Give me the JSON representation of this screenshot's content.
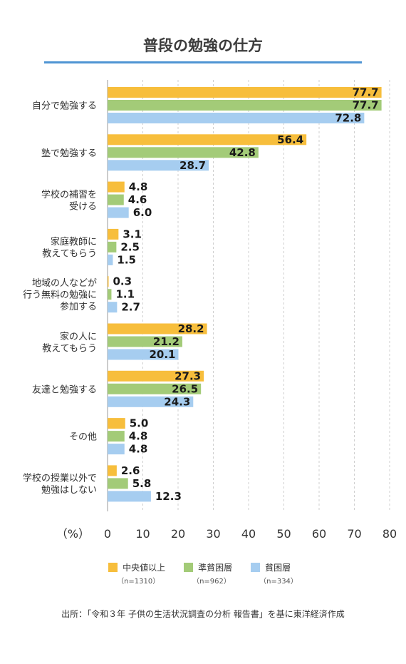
{
  "title": "普段の勉強の仕方",
  "source": "出所：「令和３年 子供の生活状況調査の分析 報告書」を基に東洋経済作成",
  "legend": [
    {
      "name": "中央値以上",
      "n": "（n=1310）",
      "color": "#f7be3c"
    },
    {
      "name": "準貧困層",
      "n": "（n=962）",
      "color": "#a3cb78"
    },
    {
      "name": "貧困層",
      "n": "（n=334）",
      "color": "#a6cdf0"
    }
  ],
  "chart_data": {
    "type": "bar",
    "orientation": "horizontal",
    "title": "普段の勉強の仕方",
    "unit_label": "（%）",
    "xlim": [
      0,
      80
    ],
    "ticks": [
      "0",
      "10",
      "20",
      "30",
      "40",
      "50",
      "60",
      "70",
      "80"
    ],
    "grid": true,
    "legend_position": "bottom",
    "categories": [
      [
        "自分で勉強する"
      ],
      [
        "塾で勉強する"
      ],
      [
        "学校の補習を",
        "受ける"
      ],
      [
        "家庭教師に",
        "教えてもらう"
      ],
      [
        "地域の人などが",
        "行う無料の勉強に",
        "参加する"
      ],
      [
        "家の人に",
        "教えてもらう"
      ],
      [
        "友達と勉強する"
      ],
      [
        "その他"
      ],
      [
        "学校の授業以外で",
        "勉強はしない"
      ]
    ],
    "series": [
      {
        "name": "中央値以上",
        "color": "#f7be3c",
        "values": [
          77.7,
          56.4,
          4.8,
          3.1,
          0.3,
          28.2,
          27.3,
          5.0,
          2.6
        ]
      },
      {
        "name": "準貧困層",
        "color": "#a3cb78",
        "values": [
          77.7,
          42.8,
          4.6,
          2.5,
          1.1,
          21.2,
          26.5,
          4.8,
          5.8
        ]
      },
      {
        "name": "貧困層",
        "color": "#a6cdf0",
        "values": [
          72.8,
          28.7,
          6.0,
          1.5,
          2.7,
          20.1,
          24.3,
          4.8,
          12.3
        ]
      }
    ]
  }
}
